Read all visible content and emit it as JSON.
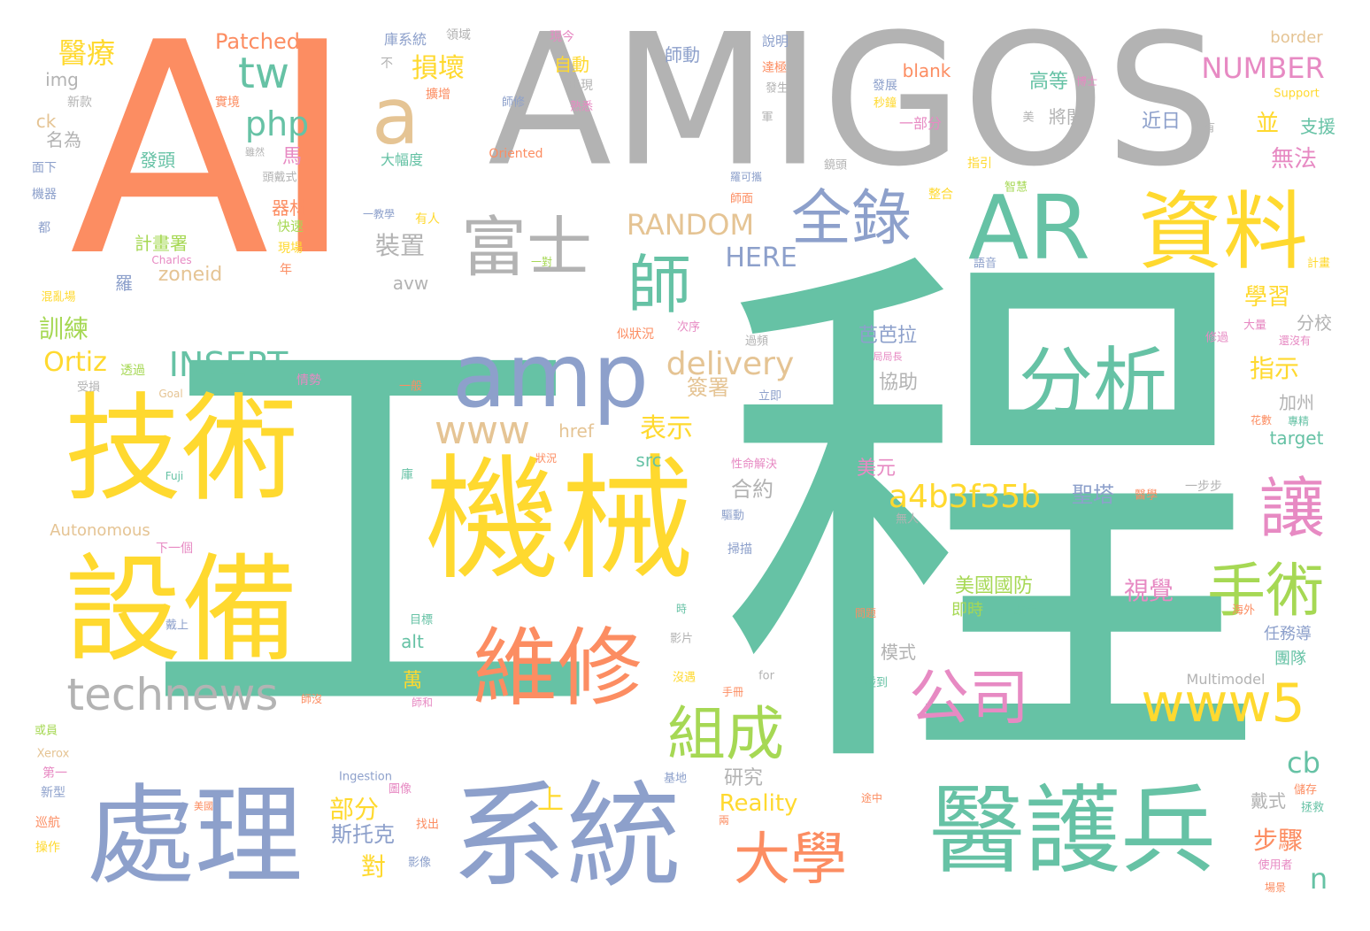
{
  "palette": {
    "teal": "#66c2a5",
    "orange": "#fc8d62",
    "blue": "#8da0cb",
    "pink": "#e78ac3",
    "green": "#a6d854",
    "yellow": "#ffd92f",
    "tan": "#e5c494",
    "gray": "#b3b3b3"
  },
  "words": [
    {
      "text": "工",
      "color": "teal"
    },
    {
      "text": "程",
      "color": "teal"
    },
    {
      "text": "AI",
      "color": "orange"
    },
    {
      "text": "AMIGOS",
      "color": "gray"
    },
    {
      "text": "機械",
      "color": "yellow"
    },
    {
      "text": "技術",
      "color": "yellow"
    },
    {
      "text": "設備",
      "color": "yellow"
    },
    {
      "text": "系統",
      "color": "blue"
    },
    {
      "text": "處理",
      "color": "blue"
    },
    {
      "text": "醫護兵",
      "color": "teal"
    },
    {
      "text": "資料",
      "color": "yellow"
    },
    {
      "text": "AR",
      "color": "teal"
    },
    {
      "text": "amp",
      "color": "blue"
    },
    {
      "text": "維修",
      "color": "orange"
    },
    {
      "text": "分析",
      "color": "teal"
    },
    {
      "text": "a",
      "color": "tan"
    },
    {
      "text": "富士",
      "color": "gray"
    },
    {
      "text": "全錄",
      "color": "blue"
    },
    {
      "text": "師",
      "color": "teal"
    },
    {
      "text": "讓",
      "color": "pink"
    },
    {
      "text": "手術",
      "color": "green"
    },
    {
      "text": "公司",
      "color": "pink"
    },
    {
      "text": "www5",
      "color": "yellow"
    },
    {
      "text": "組成",
      "color": "green"
    },
    {
      "text": "大學",
      "color": "orange"
    },
    {
      "text": "technews",
      "color": "gray"
    },
    {
      "text": "tw",
      "color": "teal"
    },
    {
      "text": "php",
      "color": "teal"
    },
    {
      "text": "www",
      "color": "tan"
    },
    {
      "text": "INSERT",
      "color": "teal"
    },
    {
      "text": "delivery",
      "color": "tan"
    },
    {
      "text": "a4b3f35b",
      "color": "yellow"
    },
    {
      "text": "NUMBER",
      "color": "pink"
    },
    {
      "text": "RANDOM",
      "color": "tan"
    },
    {
      "text": "HERE",
      "color": "blue"
    },
    {
      "text": "Ortiz",
      "color": "yellow"
    },
    {
      "text": "醫療",
      "color": "yellow"
    },
    {
      "text": "損壞",
      "color": "yellow"
    },
    {
      "text": "Patched",
      "color": "orange"
    },
    {
      "text": "表示",
      "color": "yellow"
    },
    {
      "text": "裝置",
      "color": "gray"
    },
    {
      "text": "訓練",
      "color": "green"
    },
    {
      "text": "視覺",
      "color": "pink"
    },
    {
      "text": "美國國防",
      "color": "green"
    },
    {
      "text": "cb",
      "color": "teal"
    },
    {
      "text": "n",
      "color": "teal"
    },
    {
      "text": "步驟",
      "color": "orange"
    },
    {
      "text": "斯托克",
      "color": "blue"
    },
    {
      "text": "部分",
      "color": "yellow"
    },
    {
      "text": "上",
      "color": "yellow"
    },
    {
      "text": "對",
      "color": "yellow"
    },
    {
      "text": "Reality",
      "color": "yellow"
    },
    {
      "text": "研究",
      "color": "gray"
    },
    {
      "text": "合約",
      "color": "gray"
    },
    {
      "text": "簽署",
      "color": "tan"
    },
    {
      "text": "聖塔",
      "color": "blue"
    },
    {
      "text": "美元",
      "color": "pink"
    },
    {
      "text": "芭芭拉",
      "color": "blue"
    },
    {
      "text": "協助",
      "color": "gray"
    },
    {
      "text": "指示",
      "color": "yellow"
    },
    {
      "text": "學習",
      "color": "yellow"
    },
    {
      "text": "無法",
      "color": "pink"
    },
    {
      "text": "並",
      "color": "yellow"
    },
    {
      "text": "支援",
      "color": "teal"
    },
    {
      "text": "近日",
      "color": "blue"
    },
    {
      "text": "將開",
      "color": "gray"
    },
    {
      "text": "高等",
      "color": "teal"
    },
    {
      "text": "分校",
      "color": "gray"
    },
    {
      "text": "加州",
      "color": "gray"
    },
    {
      "text": "target",
      "color": "teal"
    },
    {
      "text": "戴式",
      "color": "gray"
    },
    {
      "text": "任務導",
      "color": "blue"
    },
    {
      "text": "團隊",
      "color": "teal"
    },
    {
      "text": "模式",
      "color": "gray"
    },
    {
      "text": "即時",
      "color": "green"
    },
    {
      "text": "Multimodel",
      "color": "gray"
    },
    {
      "text": "zoneid",
      "color": "tan"
    },
    {
      "text": "avw",
      "color": "gray"
    },
    {
      "text": "href",
      "color": "tan"
    },
    {
      "text": "src",
      "color": "teal"
    },
    {
      "text": "alt",
      "color": "teal"
    },
    {
      "text": "萬",
      "color": "yellow"
    },
    {
      "text": "img",
      "color": "gray"
    },
    {
      "text": "ck",
      "color": "tan"
    },
    {
      "text": "名為",
      "color": "gray"
    },
    {
      "text": "發頭",
      "color": "teal"
    },
    {
      "text": "自動",
      "color": "yellow"
    },
    {
      "text": "馬",
      "color": "pink"
    },
    {
      "text": "器材",
      "color": "orange"
    },
    {
      "text": "計畫署",
      "color": "green"
    },
    {
      "text": "羅",
      "color": "blue"
    },
    {
      "text": "師動",
      "color": "blue"
    },
    {
      "text": "border",
      "color": "tan"
    },
    {
      "text": "blank",
      "color": "orange"
    },
    {
      "text": "Autonomous",
      "color": "tan"
    },
    {
      "text": "Oriented",
      "color": "orange"
    },
    {
      "text": "Support",
      "color": "yellow"
    },
    {
      "text": "Charles",
      "color": "pink"
    },
    {
      "text": "Goal",
      "color": "tan"
    },
    {
      "text": "Fuji",
      "color": "teal"
    },
    {
      "text": "Xerox",
      "color": "tan"
    },
    {
      "text": "Ingestion",
      "color": "blue"
    },
    {
      "text": "for",
      "color": "gray"
    },
    {
      "text": "大幅度",
      "color": "teal"
    },
    {
      "text": "庫系統",
      "color": "blue"
    },
    {
      "text": "領域",
      "color": "gray"
    },
    {
      "text": "現今",
      "color": "pink"
    },
    {
      "text": "說明",
      "color": "blue"
    },
    {
      "text": "出現",
      "color": "gray"
    },
    {
      "text": "達極",
      "color": "orange"
    },
    {
      "text": "發展",
      "color": "blue"
    },
    {
      "text": "秒鐘",
      "color": "yellow"
    },
    {
      "text": "一部分",
      "color": "pink"
    },
    {
      "text": "實境",
      "color": "orange"
    },
    {
      "text": "新款",
      "color": "gray"
    },
    {
      "text": "面下",
      "color": "blue"
    },
    {
      "text": "機器",
      "color": "blue"
    },
    {
      "text": "都",
      "color": "blue"
    },
    {
      "text": "快速",
      "color": "green"
    },
    {
      "text": "現場",
      "color": "yellow"
    },
    {
      "text": "年",
      "color": "orange"
    },
    {
      "text": "混亂場",
      "color": "yellow"
    },
    {
      "text": "頭戴式",
      "color": "gray"
    },
    {
      "text": "有人",
      "color": "yellow"
    },
    {
      "text": "一教學",
      "color": "blue"
    },
    {
      "text": "一對",
      "color": "green"
    },
    {
      "text": "指引",
      "color": "yellow"
    },
    {
      "text": "整合",
      "color": "yellow"
    },
    {
      "text": "智慧",
      "color": "green"
    },
    {
      "text": "語音",
      "color": "blue"
    },
    {
      "text": "計畫",
      "color": "yellow"
    },
    {
      "text": "大量",
      "color": "pink"
    },
    {
      "text": "還沒有",
      "color": "pink"
    },
    {
      "text": "修過",
      "color": "pink"
    },
    {
      "text": "專精",
      "color": "teal"
    },
    {
      "text": "花數",
      "color": "orange"
    },
    {
      "text": "似狀況",
      "color": "orange"
    },
    {
      "text": "次序",
      "color": "pink"
    },
    {
      "text": "過頻",
      "color": "gray"
    },
    {
      "text": "情勢",
      "color": "pink"
    },
    {
      "text": "透過",
      "color": "green"
    },
    {
      "text": "受損",
      "color": "gray"
    },
    {
      "text": "一般",
      "color": "orange"
    },
    {
      "text": "立即",
      "color": "blue"
    },
    {
      "text": "狀況",
      "color": "orange"
    },
    {
      "text": "性命解決",
      "color": "pink"
    },
    {
      "text": "一步步",
      "color": "gray"
    },
    {
      "text": "醫學",
      "color": "orange"
    },
    {
      "text": "驅動",
      "color": "blue"
    },
    {
      "text": "掃描",
      "color": "blue"
    },
    {
      "text": "無人",
      "color": "gray"
    },
    {
      "text": "下一個",
      "color": "pink"
    },
    {
      "text": "戴上",
      "color": "blue"
    },
    {
      "text": "目標",
      "color": "teal"
    },
    {
      "text": "時",
      "color": "teal"
    },
    {
      "text": "影片",
      "color": "gray"
    },
    {
      "text": "重裝備",
      "color": "teal"
    },
    {
      "text": "問題",
      "color": "orange"
    },
    {
      "text": "海外",
      "color": "orange"
    },
    {
      "text": "手冊",
      "color": "orange"
    },
    {
      "text": "沒遇",
      "color": "yellow"
    },
    {
      "text": "碰到",
      "color": "teal"
    },
    {
      "text": "師沒",
      "color": "orange"
    },
    {
      "text": "師和",
      "color": "pink"
    },
    {
      "text": "或員",
      "color": "green"
    },
    {
      "text": "第一",
      "color": "pink"
    },
    {
      "text": "新型",
      "color": "blue"
    },
    {
      "text": "巡航",
      "color": "orange"
    },
    {
      "text": "操作",
      "color": "yellow"
    },
    {
      "text": "美國",
      "color": "orange"
    },
    {
      "text": "圖像",
      "color": "pink"
    },
    {
      "text": "找出",
      "color": "orange"
    },
    {
      "text": "影像",
      "color": "blue"
    },
    {
      "text": "基地",
      "color": "blue"
    },
    {
      "text": "兩",
      "color": "orange"
    },
    {
      "text": "途中",
      "color": "orange"
    },
    {
      "text": "儲存",
      "color": "orange"
    },
    {
      "text": "拯救",
      "color": "teal"
    },
    {
      "text": "使用者",
      "color": "pink"
    },
    {
      "text": "場景",
      "color": "orange"
    },
    {
      "text": "庫",
      "color": "teal"
    },
    {
      "text": "擴增",
      "color": "orange"
    },
    {
      "text": "師修",
      "color": "blue"
    },
    {
      "text": "熟悉",
      "color": "pink"
    },
    {
      "text": "發生",
      "color": "gray"
    },
    {
      "text": "軍",
      "color": "gray"
    },
    {
      "text": "鏡頭",
      "color": "gray"
    },
    {
      "text": "羅可攜",
      "color": "blue"
    },
    {
      "text": "師面",
      "color": "orange"
    },
    {
      "text": "所有",
      "color": "gray"
    },
    {
      "text": "美",
      "color": "gray"
    },
    {
      "text": "博士",
      "color": "pink"
    },
    {
      "text": "不",
      "color": "gray"
    },
    {
      "text": "局局長",
      "color": "pink"
    },
    {
      "text": "雖然",
      "color": "gray"
    }
  ]
}
